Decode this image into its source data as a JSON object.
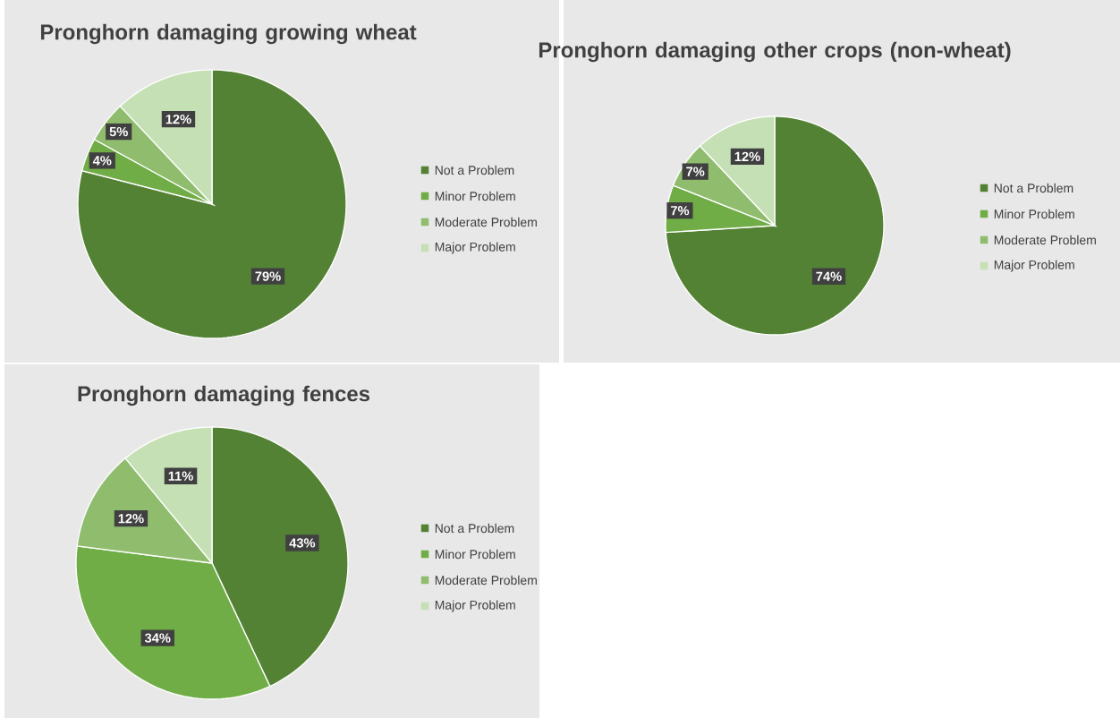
{
  "chart_data": [
    {
      "type": "pie",
      "title": "Pronghorn damaging growing wheat",
      "categories": [
        "Not a Problem",
        "Minor Problem",
        "Moderate Problem",
        "Major Problem"
      ],
      "values": [
        79,
        4,
        5,
        12
      ],
      "colors": [
        "#548235",
        "#70ad47",
        "#8fbc6d",
        "#c5e0b4"
      ],
      "value_labels": [
        "79%",
        "4%",
        "5%",
        "12%"
      ],
      "legend": "right"
    },
    {
      "type": "pie",
      "title": "Pronghorn damaging other crops (non-wheat)",
      "categories": [
        "Not a Problem",
        "Minor Problem",
        "Moderate Problem",
        "Major Problem"
      ],
      "values": [
        74,
        7,
        7,
        12
      ],
      "colors": [
        "#548235",
        "#70ad47",
        "#8fbc6d",
        "#c5e0b4"
      ],
      "value_labels": [
        "74%",
        "7%",
        "7%",
        "12%"
      ],
      "legend": "right"
    },
    {
      "type": "pie",
      "title": "Pronghorn damaging fences",
      "categories": [
        "Not a Problem",
        "Minor Problem",
        "Moderate Problem",
        "Major Problem"
      ],
      "values": [
        43,
        34,
        12,
        11
      ],
      "colors": [
        "#548235",
        "#70ad47",
        "#8fbc6d",
        "#c5e0b4"
      ],
      "value_labels": [
        "43%",
        "34%",
        "12%",
        "11%"
      ],
      "legend": "right"
    }
  ]
}
